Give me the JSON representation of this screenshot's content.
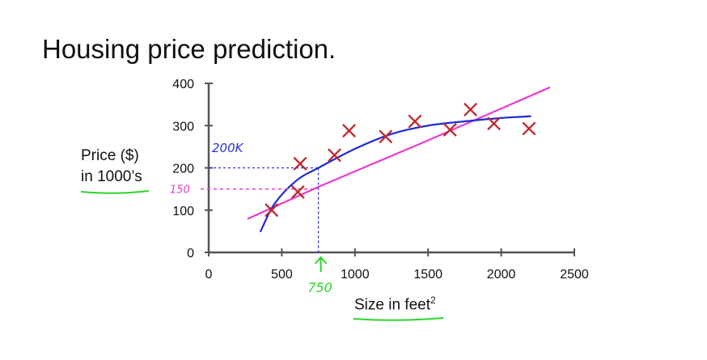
{
  "title": "Housing price prediction.",
  "ylabel": [
    "Price ($)",
    "in 1000’s"
  ],
  "xlabel": {
    "text": "Size in feet",
    "sup": "2"
  },
  "annotations": {
    "y200": "200K",
    "y150": "150",
    "x750": "750"
  },
  "colors": {
    "axis": "#555555",
    "cross": "#c0272d",
    "linear_fit": "#e83ad0",
    "curve_fit": "#1f2bd6",
    "annotation_blue": "#2a35d6",
    "annotation_pink": "#e83ad0",
    "annotation_green": "#2bd62b"
  },
  "chart_data": {
    "type": "scatter",
    "xlim": [
      0,
      2500
    ],
    "ylim": [
      0,
      400
    ],
    "xticks": [
      0,
      500,
      1000,
      1500,
      2000,
      2500
    ],
    "yticks": [
      0,
      100,
      200,
      300,
      400
    ],
    "points": [
      {
        "x": 430,
        "y": 100
      },
      {
        "x": 610,
        "y": 143
      },
      {
        "x": 625,
        "y": 210
      },
      {
        "x": 860,
        "y": 230
      },
      {
        "x": 960,
        "y": 288
      },
      {
        "x": 1210,
        "y": 274
      },
      {
        "x": 1410,
        "y": 310
      },
      {
        "x": 1650,
        "y": 290
      },
      {
        "x": 1790,
        "y": 338
      },
      {
        "x": 1950,
        "y": 305
      },
      {
        "x": 2190,
        "y": 293
      }
    ],
    "linear_fit": [
      [
        270,
        80
      ],
      [
        750,
        155
      ],
      [
        1500,
        265
      ],
      [
        2330,
        390
      ]
    ],
    "curve_fit": [
      [
        355,
        50
      ],
      [
        450,
        115
      ],
      [
        600,
        170
      ],
      [
        750,
        200
      ],
      [
        1000,
        245
      ],
      [
        1250,
        280
      ],
      [
        1500,
        300
      ],
      [
        1750,
        310
      ],
      [
        2000,
        318
      ],
      [
        2200,
        322
      ]
    ]
  }
}
